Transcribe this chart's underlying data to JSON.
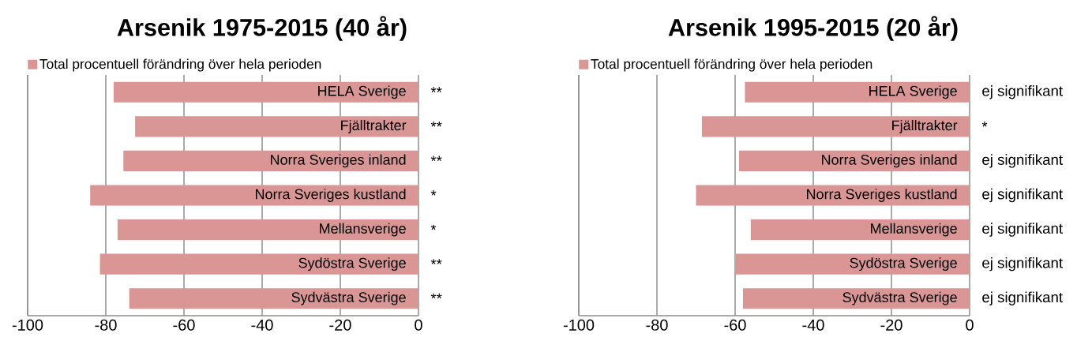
{
  "chart_data": [
    {
      "type": "bar",
      "orientation": "horizontal",
      "title": "Arsenik 1975-2015 (40 år)",
      "categories": [
        "HELA Sverige",
        "Fjälltrakter",
        "Norra Sveriges inland",
        "Norra Sveriges kustland",
        "Mellansverige",
        "Sydöstra Sverige",
        "Sydvästra Sverige"
      ],
      "series": [
        {
          "name": "Total procentuell förändring över hela perioden",
          "color": "#d99694",
          "values": [
            -78,
            -72.5,
            -75.5,
            -84,
            -77,
            -81.5,
            -74
          ]
        }
      ],
      "xlim": [
        -100,
        0
      ],
      "xticks": [
        -100,
        -80,
        -60,
        -40,
        -20,
        0
      ],
      "grid": "x",
      "legend": "top left",
      "annotations": [
        "**",
        "**",
        "**",
        "*",
        "*",
        "**",
        "**"
      ]
    },
    {
      "type": "bar",
      "orientation": "horizontal",
      "title": "Arsenik 1995-2015 (20 år)",
      "categories": [
        "HELA Sverige",
        "Fjälltrakter",
        "Norra Sveriges inland",
        "Norra Sveriges kustland",
        "Mellansverige",
        "Sydöstra Sverige",
        "Sydvästra Sverige"
      ],
      "series": [
        {
          "name": "Total procentuell förändring över hela perioden",
          "color": "#d99694",
          "values": [
            -57.5,
            -68.5,
            -59,
            -70,
            -56,
            -60,
            -58
          ]
        }
      ],
      "xlim": [
        -100,
        0
      ],
      "xticks": [
        -100,
        -80,
        -60,
        -40,
        -20,
        0
      ],
      "grid": "x",
      "legend": "top left",
      "annotations": [
        "ej signifikant",
        "*",
        "ej signifikant",
        "ej signifikant",
        "ej signifikant",
        "ej signifikant",
        "ej signifikant"
      ]
    }
  ]
}
